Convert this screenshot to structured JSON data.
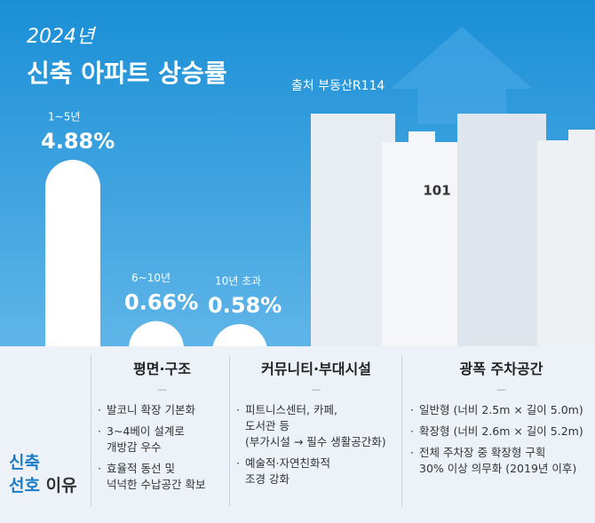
{
  "chart_data": {
    "type": "bar",
    "subtitle": "2024년",
    "title": "신축 아파트 상승률",
    "source": "출처 부동산R114",
    "categories": [
      "1~5년",
      "6~10년",
      "10년 초과"
    ],
    "values": [
      4.88,
      0.66,
      0.58
    ],
    "value_labels": [
      "4.88%",
      "0.66%",
      "0.58%"
    ],
    "color": "#ffffff"
  },
  "building_label": "101",
  "reasons": {
    "heading": [
      "신축",
      "선호",
      "이유"
    ],
    "columns": [
      {
        "title": "평면·구조",
        "items": [
          [
            "발코니 확장 기본화"
          ],
          [
            "3~4베이 설계로",
            "개방감 우수"
          ],
          [
            "효율적 동선 및",
            "넉넉한 수납공간 확보"
          ]
        ]
      },
      {
        "title": "커뮤니티·부대시설",
        "items": [
          [
            "피트니스센터, 카페,",
            "도서관 등",
            "(부가시설 → 필수 생활공간화)"
          ],
          [
            "예술적·자연친화적",
            "조경 강화"
          ]
        ]
      },
      {
        "title": "광폭 주차공간",
        "items": [
          [
            "일반형 (너비 2.5m × 길이 5.0m)"
          ],
          [
            "확장형 (너비 2.6m × 길이 5.2m)"
          ],
          [
            "전체 주차장 중 확장형 구획",
            "30% 이상 의무화 (2019년 이후)"
          ]
        ]
      }
    ]
  }
}
